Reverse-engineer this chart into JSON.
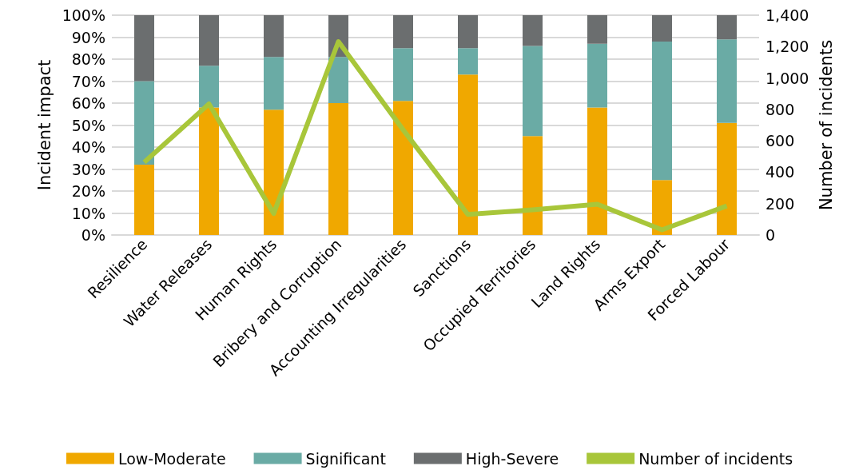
{
  "chart_data": {
    "type": "bar",
    "stacked": true,
    "ylabel": "Incident impact",
    "y2label": "Number of incidents",
    "categories": [
      "Resilience",
      "Water Releases",
      "Human Rights",
      "Bribery and Corruption",
      "Accounting Irregularities",
      "Sanctions",
      "Occupied Territories",
      "Land Rights",
      "Arms Export",
      "Forced Labour"
    ],
    "series": [
      {
        "name": "Low-Moderate",
        "color": "#f0a800",
        "values": [
          32,
          58,
          57,
          60,
          61,
          73,
          45,
          58,
          25,
          51
        ]
      },
      {
        "name": "Significant",
        "color": "#6aaba5",
        "values": [
          38,
          19,
          24,
          21,
          24,
          12,
          41,
          29,
          63,
          38
        ]
      },
      {
        "name": "High-Severe",
        "color": "#6b6e6f",
        "values": [
          30,
          23,
          19,
          19,
          15,
          15,
          14,
          13,
          12,
          11
        ]
      },
      {
        "name": "Number of incidents",
        "type": "line",
        "axis": "y2",
        "color": "#a8c63a",
        "values": [
          463,
          835,
          137,
          1232,
          670,
          131,
          160,
          196,
          33,
          185
        ]
      }
    ],
    "ylim": [
      0,
      100
    ],
    "yticks": [
      {
        "value": 0,
        "label": "0%"
      },
      {
        "value": 10,
        "label": "10%"
      },
      {
        "value": 20,
        "label": "20%"
      },
      {
        "value": 30,
        "label": "30%"
      },
      {
        "value": 40,
        "label": "40%"
      },
      {
        "value": 50,
        "label": "50%"
      },
      {
        "value": 60,
        "label": "60%"
      },
      {
        "value": 70,
        "label": "70%"
      },
      {
        "value": 80,
        "label": "80%"
      },
      {
        "value": 90,
        "label": "90%"
      },
      {
        "value": 100,
        "label": "100%"
      }
    ],
    "y2lim": [
      0,
      1400
    ],
    "y2ticks": [
      {
        "value": 0,
        "label": "0"
      },
      {
        "value": 200,
        "label": "200"
      },
      {
        "value": 400,
        "label": "400"
      },
      {
        "value": 600,
        "label": "600"
      },
      {
        "value": 800,
        "label": "800"
      },
      {
        "value": 1000,
        "label": "1,000"
      },
      {
        "value": 1200,
        "label": "1,200"
      },
      {
        "value": 1400,
        "label": "1,400"
      }
    ],
    "grid": "y",
    "legend": "bottom",
    "marker": "none"
  }
}
